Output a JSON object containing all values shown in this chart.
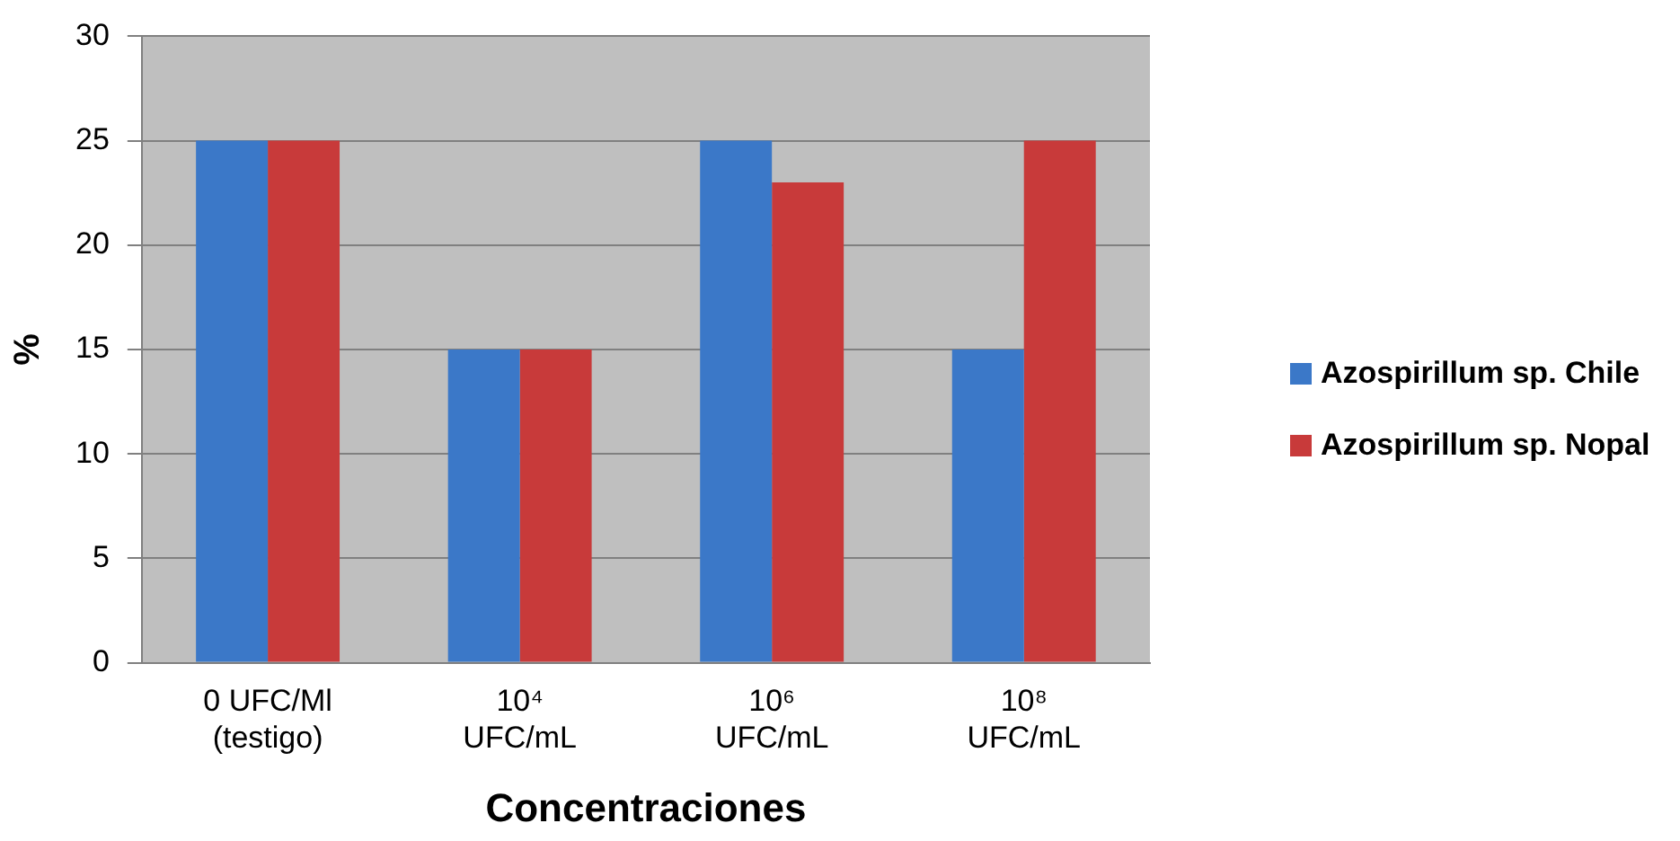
{
  "chart_data": {
    "type": "bar",
    "xlabel": "Concentraciones",
    "ylabel": "%",
    "categories": [
      "0 UFC/Ml\n(testigo)",
      "10⁴\nUFC/mL",
      "10⁶\nUFC/mL",
      "10⁸\nUFC/mL"
    ],
    "series": [
      {
        "name": "Azospirillum sp. Chile",
        "color": "#3b78c8",
        "values": [
          25,
          15,
          25,
          15
        ]
      },
      {
        "name": "Azospirillum sp. Nopal",
        "color": "#c83a3a",
        "values": [
          25,
          15,
          23,
          25
        ]
      }
    ],
    "ylim": [
      0,
      30
    ],
    "yticks": [
      0,
      5,
      10,
      15,
      20,
      25,
      30
    ],
    "grid": "y",
    "legend": "right"
  }
}
